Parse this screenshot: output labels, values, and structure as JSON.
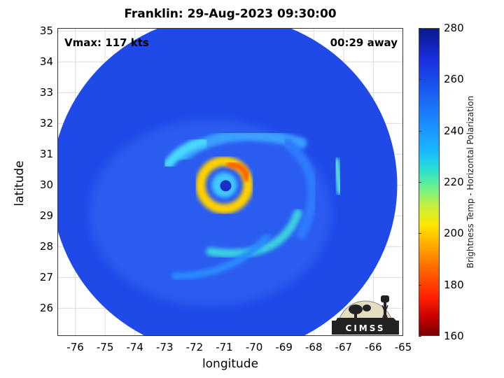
{
  "title": "Franklin: 29-Aug-2023 09:30:00",
  "annotations": {
    "vmax": "Vmax: 117 kts",
    "away": "00:29 away"
  },
  "axes": {
    "xlabel": "longitude",
    "ylabel": "latitude",
    "xlim": [
      -76.6,
      -65
    ],
    "ylim": [
      25.1,
      35.1
    ],
    "xticks": [
      "-76",
      "-75",
      "-74",
      "-73",
      "-72",
      "-71",
      "-70",
      "-69",
      "-68",
      "-67",
      "-66",
      "-65"
    ],
    "yticks": [
      "26",
      "27",
      "28",
      "29",
      "30",
      "31",
      "32",
      "33",
      "34",
      "35"
    ],
    "grid": true
  },
  "colorbar": {
    "label": "Brightness Temp - Horizontal Polarization",
    "range": [
      160,
      280
    ],
    "ticks": [
      "280",
      "260",
      "240",
      "220",
      "200",
      "180",
      "160"
    ],
    "colormap": "jet"
  },
  "logo": {
    "text": "CIMSS"
  },
  "storm": {
    "center_lon": -71.0,
    "center_lat": 30.0,
    "swath_radius_deg": 5.8
  }
}
